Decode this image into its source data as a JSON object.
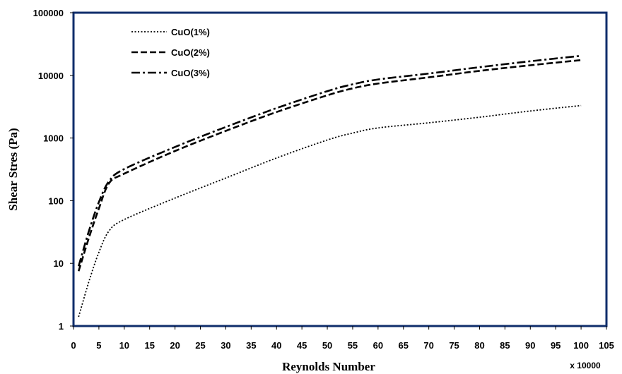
{
  "chart_data": {
    "type": "line",
    "title": "",
    "xlabel": "Reynolds Number",
    "ylabel": "Shear Stres (Pa)",
    "x_multiplier_label": "x 10000",
    "xlim": [
      0,
      105
    ],
    "ylim": [
      1,
      100000
    ],
    "y_scale": "log",
    "x_ticks": [
      "0",
      "5",
      "10",
      "15",
      "20",
      "25",
      "30",
      "35",
      "40",
      "45",
      "50",
      "55",
      "60",
      "65",
      "70",
      "75",
      "80",
      "85",
      "90",
      "95",
      "100",
      "105"
    ],
    "y_ticks": [
      "1",
      "10",
      "100",
      "1000",
      "10000",
      "100000"
    ],
    "grid": false,
    "legend_position": "top-left",
    "frame_color": "#0f2d6b",
    "line_color": "#000000",
    "series": [
      {
        "name": "CuO(1%)",
        "style": "dotted",
        "x": [
          1,
          3,
          5,
          7,
          10,
          20,
          30,
          40,
          50,
          55,
          60,
          70,
          80,
          90,
          100
        ],
        "y": [
          1.4,
          5,
          15,
          33,
          50,
          110,
          230,
          480,
          930,
          1200,
          1450,
          1750,
          2150,
          2700,
          3300
        ]
      },
      {
        "name": "CuO(2%)",
        "style": "dashed",
        "x": [
          1,
          3,
          5,
          7,
          10,
          20,
          30,
          40,
          50,
          55,
          60,
          70,
          80,
          90,
          100
        ],
        "y": [
          7.5,
          25,
          75,
          190,
          270,
          620,
          1300,
          2600,
          4800,
          6200,
          7400,
          9300,
          11800,
          14500,
          17500
        ]
      },
      {
        "name": "CuO(3%)",
        "style": "dash-dot",
        "x": [
          1,
          3,
          5,
          7,
          10,
          20,
          30,
          40,
          50,
          55,
          60,
          70,
          80,
          90,
          100
        ],
        "y": [
          9,
          32,
          95,
          205,
          320,
          720,
          1500,
          3000,
          5600,
          7200,
          8600,
          10700,
          13500,
          16800,
          20500
        ]
      }
    ]
  }
}
